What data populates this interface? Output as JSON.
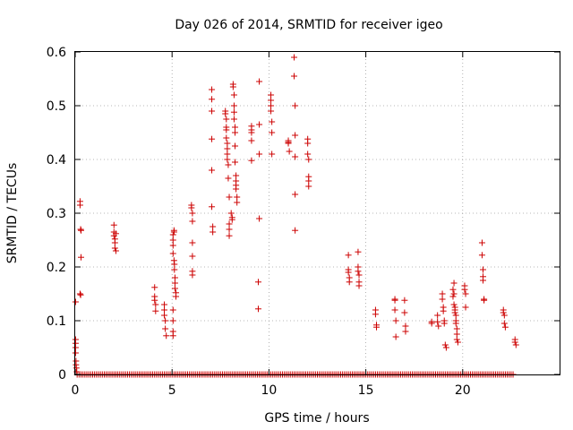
{
  "chart_data": {
    "type": "scatter",
    "title": "Day 026 of 2014, SRMTID for receiver igeo",
    "xlabel": "GPS time / hours",
    "ylabel": "SRMTID / TECUs",
    "xlim": [
      0,
      25
    ],
    "ylim": [
      0,
      0.6
    ],
    "x_ticks": [
      0,
      5,
      10,
      15,
      20
    ],
    "x_tick_labels": [
      "0",
      "5",
      "10",
      "15",
      "20"
    ],
    "y_ticks": [
      0,
      0.1,
      0.2,
      0.3,
      0.4,
      0.5,
      0.6
    ],
    "y_tick_labels": [
      "0",
      "0.1",
      "0.2",
      "0.3",
      "0.4",
      "0.5",
      "0.6"
    ],
    "grid": true,
    "marker": "plus",
    "color": "#cc0000",
    "series": [
      {
        "name": "SRMTID",
        "points": [
          [
            0.02,
            0.135
          ],
          [
            0.02,
            0.065
          ],
          [
            0.02,
            0.058
          ],
          [
            0.02,
            0.05
          ],
          [
            0.02,
            0.04
          ],
          [
            0.04,
            0.025
          ],
          [
            0.04,
            0.018
          ],
          [
            0.06,
            0.012
          ],
          [
            0.08,
            0.005
          ],
          [
            0.25,
            0.322
          ],
          [
            0.25,
            0.315
          ],
          [
            0.28,
            0.27
          ],
          [
            0.3,
            0.268
          ],
          [
            0.3,
            0.218
          ],
          [
            0.25,
            0.15
          ],
          [
            0.28,
            0.148
          ],
          [
            2.0,
            0.278
          ],
          [
            2.0,
            0.265
          ],
          [
            2.0,
            0.258
          ],
          [
            2.05,
            0.252
          ],
          [
            2.05,
            0.245
          ],
          [
            2.05,
            0.235
          ],
          [
            2.1,
            0.23
          ],
          [
            2.1,
            0.262
          ],
          [
            4.1,
            0.162
          ],
          [
            4.1,
            0.145
          ],
          [
            4.1,
            0.138
          ],
          [
            4.15,
            0.13
          ],
          [
            4.15,
            0.118
          ],
          [
            4.6,
            0.13
          ],
          [
            4.6,
            0.12
          ],
          [
            4.6,
            0.11
          ],
          [
            4.65,
            0.1
          ],
          [
            4.65,
            0.085
          ],
          [
            4.7,
            0.072
          ],
          [
            5.05,
            0.26
          ],
          [
            5.05,
            0.25
          ],
          [
            5.05,
            0.24
          ],
          [
            5.05,
            0.225
          ],
          [
            5.1,
            0.265
          ],
          [
            5.1,
            0.268
          ],
          [
            5.1,
            0.212
          ],
          [
            5.12,
            0.205
          ],
          [
            5.12,
            0.195
          ],
          [
            5.15,
            0.18
          ],
          [
            5.15,
            0.17
          ],
          [
            5.15,
            0.16
          ],
          [
            5.2,
            0.152
          ],
          [
            5.2,
            0.145
          ],
          [
            5.05,
            0.12
          ],
          [
            5.05,
            0.1
          ],
          [
            5.05,
            0.08
          ],
          [
            5.05,
            0.072
          ],
          [
            6.0,
            0.315
          ],
          [
            6.0,
            0.31
          ],
          [
            6.05,
            0.3
          ],
          [
            6.05,
            0.285
          ],
          [
            6.05,
            0.245
          ],
          [
            6.05,
            0.22
          ],
          [
            6.05,
            0.192
          ],
          [
            6.05,
            0.185
          ],
          [
            7.05,
            0.53
          ],
          [
            7.05,
            0.512
          ],
          [
            7.05,
            0.49
          ],
          [
            7.05,
            0.438
          ],
          [
            7.05,
            0.38
          ],
          [
            7.05,
            0.312
          ],
          [
            7.1,
            0.275
          ],
          [
            7.1,
            0.265
          ],
          [
            7.75,
            0.49
          ],
          [
            7.75,
            0.485
          ],
          [
            7.8,
            0.475
          ],
          [
            7.8,
            0.46
          ],
          [
            7.8,
            0.455
          ],
          [
            7.8,
            0.44
          ],
          [
            7.85,
            0.43
          ],
          [
            7.85,
            0.42
          ],
          [
            7.85,
            0.41
          ],
          [
            7.85,
            0.4
          ],
          [
            7.9,
            0.39
          ],
          [
            7.9,
            0.365
          ],
          [
            7.95,
            0.33
          ],
          [
            7.95,
            0.28
          ],
          [
            7.95,
            0.27
          ],
          [
            7.95,
            0.258
          ],
          [
            8.15,
            0.54
          ],
          [
            8.15,
            0.535
          ],
          [
            8.2,
            0.52
          ],
          [
            8.2,
            0.5
          ],
          [
            8.2,
            0.488
          ],
          [
            8.2,
            0.475
          ],
          [
            8.25,
            0.46
          ],
          [
            8.25,
            0.45
          ],
          [
            8.25,
            0.425
          ],
          [
            8.25,
            0.395
          ],
          [
            8.3,
            0.37
          ],
          [
            8.3,
            0.36
          ],
          [
            8.3,
            0.352
          ],
          [
            8.3,
            0.345
          ],
          [
            8.35,
            0.33
          ],
          [
            8.35,
            0.32
          ],
          [
            8.1,
            0.292
          ],
          [
            8.1,
            0.288
          ],
          [
            8.05,
            0.3
          ],
          [
            9.1,
            0.462
          ],
          [
            9.1,
            0.455
          ],
          [
            9.1,
            0.45
          ],
          [
            9.1,
            0.435
          ],
          [
            9.1,
            0.398
          ],
          [
            9.5,
            0.545
          ],
          [
            9.5,
            0.465
          ],
          [
            9.5,
            0.41
          ],
          [
            9.5,
            0.29
          ],
          [
            9.45,
            0.172
          ],
          [
            9.45,
            0.122
          ],
          [
            10.1,
            0.52
          ],
          [
            10.1,
            0.51
          ],
          [
            10.1,
            0.5
          ],
          [
            10.1,
            0.49
          ],
          [
            10.15,
            0.47
          ],
          [
            10.15,
            0.45
          ],
          [
            10.15,
            0.41
          ],
          [
            11.0,
            0.435
          ],
          [
            11.0,
            0.432
          ],
          [
            11.0,
            0.43
          ],
          [
            11.05,
            0.415
          ],
          [
            11.3,
            0.59
          ],
          [
            11.3,
            0.555
          ],
          [
            11.35,
            0.5
          ],
          [
            11.35,
            0.445
          ],
          [
            11.35,
            0.405
          ],
          [
            11.35,
            0.335
          ],
          [
            11.35,
            0.268
          ],
          [
            12.0,
            0.438
          ],
          [
            12.0,
            0.43
          ],
          [
            12.0,
            0.41
          ],
          [
            12.05,
            0.4
          ],
          [
            12.05,
            0.368
          ],
          [
            12.05,
            0.36
          ],
          [
            12.05,
            0.35
          ],
          [
            14.1,
            0.222
          ],
          [
            14.1,
            0.195
          ],
          [
            14.1,
            0.19
          ],
          [
            14.15,
            0.18
          ],
          [
            14.15,
            0.172
          ],
          [
            14.6,
            0.228
          ],
          [
            14.6,
            0.2
          ],
          [
            14.6,
            0.192
          ],
          [
            14.65,
            0.185
          ],
          [
            14.65,
            0.172
          ],
          [
            14.65,
            0.165
          ],
          [
            15.5,
            0.12
          ],
          [
            15.5,
            0.112
          ],
          [
            15.55,
            0.092
          ],
          [
            15.55,
            0.088
          ],
          [
            16.5,
            0.14
          ],
          [
            16.5,
            0.138
          ],
          [
            16.5,
            0.12
          ],
          [
            16.55,
            0.1
          ],
          [
            16.55,
            0.07
          ],
          [
            17.0,
            0.138
          ],
          [
            17.0,
            0.115
          ],
          [
            17.05,
            0.09
          ],
          [
            17.05,
            0.08
          ],
          [
            18.4,
            0.098
          ],
          [
            18.4,
            0.095
          ],
          [
            18.7,
            0.11
          ],
          [
            18.7,
            0.098
          ],
          [
            18.75,
            0.09
          ],
          [
            18.95,
            0.15
          ],
          [
            18.95,
            0.14
          ],
          [
            19.0,
            0.125
          ],
          [
            19.0,
            0.118
          ],
          [
            19.05,
            0.1
          ],
          [
            19.05,
            0.095
          ],
          [
            19.1,
            0.055
          ],
          [
            19.15,
            0.05
          ],
          [
            19.55,
            0.17
          ],
          [
            19.55,
            0.15
          ],
          [
            19.55,
            0.13
          ],
          [
            19.6,
            0.125
          ],
          [
            19.6,
            0.12
          ],
          [
            19.6,
            0.115
          ],
          [
            19.65,
            0.11
          ],
          [
            19.65,
            0.1
          ],
          [
            19.65,
            0.095
          ],
          [
            19.7,
            0.085
          ],
          [
            19.7,
            0.075
          ],
          [
            19.7,
            0.065
          ],
          [
            19.75,
            0.06
          ],
          [
            19.5,
            0.158
          ],
          [
            19.5,
            0.145
          ],
          [
            20.1,
            0.165
          ],
          [
            20.1,
            0.158
          ],
          [
            20.15,
            0.15
          ],
          [
            20.15,
            0.125
          ],
          [
            21.0,
            0.245
          ],
          [
            21.0,
            0.222
          ],
          [
            21.05,
            0.195
          ],
          [
            21.05,
            0.182
          ],
          [
            21.05,
            0.175
          ],
          [
            21.1,
            0.14
          ],
          [
            21.1,
            0.138
          ],
          [
            22.1,
            0.12
          ],
          [
            22.1,
            0.115
          ],
          [
            22.15,
            0.11
          ],
          [
            22.15,
            0.095
          ],
          [
            22.2,
            0.088
          ],
          [
            22.7,
            0.065
          ],
          [
            22.7,
            0.06
          ],
          [
            22.75,
            0.055
          ]
        ]
      },
      {
        "name": "SRMTID zero baseline",
        "points_mode": "range",
        "x_start": 0.1,
        "x_end": 22.6,
        "x_step": 0.1,
        "y": 0
      }
    ]
  }
}
